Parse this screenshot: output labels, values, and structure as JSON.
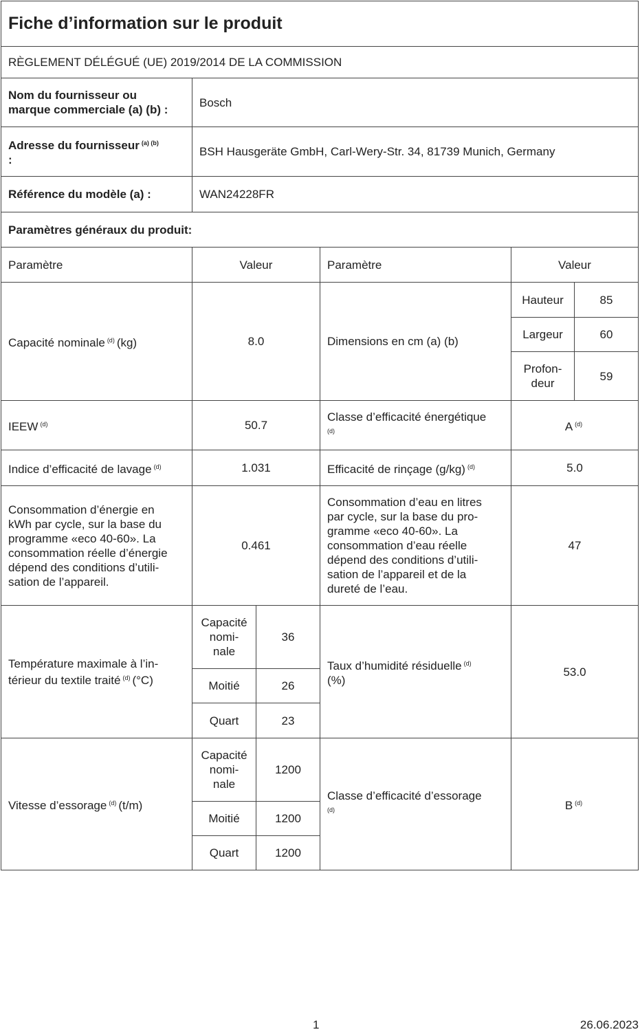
{
  "header": {
    "title": "Fiche d’information sur le produit",
    "regulation": "RÈGLEMENT DÉLÉGUÉ (UE) 2019/2014 DE LA COMMISSION"
  },
  "supplier": {
    "label": "Nom du fournisseur ou\nmarque commerciale (a) (b) :",
    "value": "Bosch"
  },
  "address": {
    "label": "Adresse du fournisseur",
    "note": "(a) (b)",
    "suffix": ":",
    "value": "BSH Hausgeräte GmbH, Carl-Wery-Str. 34, 81739 Munich, Germany"
  },
  "model": {
    "label": "Référence du modèle (a) :",
    "value": "WAN24228FR"
  },
  "general": "Paramètres généraux du produit:",
  "columns": [
    "Paramètre",
    "Valeur",
    "Paramètre",
    "Valeur"
  ],
  "capacity": {
    "label": "Capacité nominale",
    "note": "(d)",
    "unit": "(kg)",
    "value": "8.0"
  },
  "dimensions": {
    "label": "Dimensions en cm (a) (b)",
    "rows": [
      [
        "Hauteur",
        "85"
      ],
      [
        "Largeur",
        "60"
      ],
      [
        "Profon-\ndeur",
        "59"
      ]
    ]
  },
  "ieew": {
    "label": "IEEW",
    "note": "(d)",
    "value": "50.7"
  },
  "energy_class": {
    "label": "Classe d’efficacité énergétique",
    "note": "(d)",
    "value": "A",
    "value_note": "(d)"
  },
  "washing": {
    "label": "Indice d’efficacité de lavage",
    "note": "(d)",
    "value": "1.031"
  },
  "rinsing": {
    "label": "Efficacité de rinçage (g/kg)",
    "note": "(d)",
    "value": "5.0"
  },
  "energy": {
    "label": "Consommation d’énergie en\nkWh par cycle, sur la base du\nprogramme «eco 40-60». La\nconsommation réelle d’énergie\ndépend des conditions d’utili-\nsation de l’appareil.",
    "value": "0.461"
  },
  "water": {
    "label": "Consommation d’eau en litres\npar cycle, sur la base du pro-\ngramme «eco 40-60». La\nconsommation d’eau réelle\ndépend des conditions d’utili-\nsation de l’appareil et de la\ndureté de l’eau.",
    "value": "47"
  },
  "temperature": {
    "label": "Température maximale à l’in-\ntérieur du textile traité",
    "note": "(d)",
    "unit": "(°C)",
    "rows": [
      [
        "Capacité\nnomi-\nnale",
        "36"
      ],
      [
        "Moitié",
        "26"
      ],
      [
        "Quart",
        "23"
      ]
    ]
  },
  "moisture": {
    "label": "Taux d’humidité résiduelle",
    "note": "(d)",
    "unit": "(%)",
    "value": "53.0"
  },
  "spin": {
    "label": "Vitesse d’essorage",
    "note": "(d)",
    "unit": "(t/m)",
    "rows": [
      [
        "Capacité\nnomi-\nnale",
        "1200"
      ],
      [
        "Moitié",
        "1200"
      ],
      [
        "Quart",
        "1200"
      ]
    ]
  },
  "spin_class": {
    "label": "Classe d’efficacité d’essorage",
    "note": "(d)",
    "value": "B",
    "value_note": "(d)"
  },
  "footer": {
    "page": "1",
    "date": "26.06.2023"
  }
}
